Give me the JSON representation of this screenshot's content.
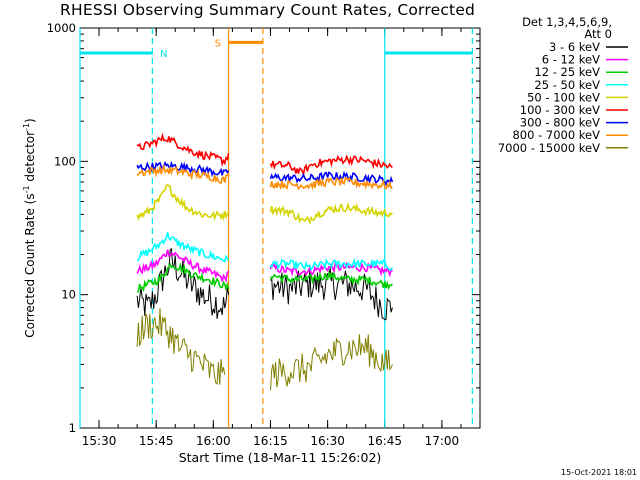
{
  "title": "RHESSI Observing Summary Count Rates, Corrected",
  "stamp": "15-Oct-2021 18:01",
  "chart_data": {
    "type": "line",
    "xlabel": "Start Time (18-Mar-11 15:26:02)",
    "ylabel_parts": [
      "Corrected Count Rate (s",
      "-1",
      " detector",
      "-1",
      ")"
    ],
    "yscale": "log",
    "ylim": [
      1,
      1000
    ],
    "xlim": [
      "15:25",
      "17:10"
    ],
    "x_ticks": [
      "15:30",
      "15:45",
      "16:00",
      "16:15",
      "16:30",
      "16:45",
      "17:00"
    ],
    "y_ticks": [
      "1",
      "10",
      "100",
      "1000"
    ],
    "legend_header": [
      "Det 1,3,4,5,6,9,",
      "Att 0"
    ],
    "legend_position": "right",
    "flags": [
      {
        "label": "N",
        "color": "#00e5ee",
        "start": "15:25",
        "end": "15:44",
        "level": 650
      },
      {
        "label": "S",
        "color": "#ff8c00",
        "start": "16:04",
        "end": "16:13",
        "level": 780
      },
      {
        "label": "N",
        "color": "#00e5ee",
        "start": "16:45",
        "end": "17:08",
        "level": 650
      }
    ],
    "boundaries": [
      {
        "time": "15:25",
        "color": "#00e5ee",
        "style": "solid"
      },
      {
        "time": "15:44",
        "color": "#00e5ee",
        "style": "dashed"
      },
      {
        "time": "16:04",
        "color": "#ff8c00",
        "style": "solid"
      },
      {
        "time": "16:13",
        "color": "#ff8c00",
        "style": "dashed"
      },
      {
        "time": "16:45",
        "color": "#00e5ee",
        "style": "solid"
      },
      {
        "time": "17:08",
        "color": "#00e5ee",
        "style": "dashed"
      }
    ],
    "gap": [
      "16:05",
      "16:15"
    ],
    "series": [
      {
        "name": "3 - 6 keV",
        "color": "#000000",
        "points": [
          [
            "15:40",
            9
          ],
          [
            "15:43",
            8
          ],
          [
            "15:45",
            10
          ],
          [
            "15:47",
            14
          ],
          [
            "15:49",
            18
          ],
          [
            "15:51",
            15
          ],
          [
            "15:54",
            12
          ],
          [
            "15:57",
            10
          ],
          [
            "16:00",
            9
          ],
          [
            "16:03",
            8
          ],
          [
            "16:04",
            10
          ],
          [
            "16:15",
            12
          ],
          [
            "16:20",
            11
          ],
          [
            "16:25",
            12
          ],
          [
            "16:30",
            12
          ],
          [
            "16:35",
            12
          ],
          [
            "16:40",
            11
          ],
          [
            "16:45",
            8
          ],
          [
            "16:47",
            8
          ]
        ]
      },
      {
        "name": "6 - 12 keV",
        "color": "#ff00ff",
        "points": [
          [
            "15:40",
            15
          ],
          [
            "15:43",
            16
          ],
          [
            "15:45",
            17
          ],
          [
            "15:48",
            21
          ],
          [
            "15:50",
            20
          ],
          [
            "15:54",
            17
          ],
          [
            "15:58",
            15
          ],
          [
            "16:01",
            14
          ],
          [
            "16:03",
            13
          ],
          [
            "16:04",
            15
          ],
          [
            "16:15",
            16
          ],
          [
            "16:20",
            15
          ],
          [
            "16:25",
            15
          ],
          [
            "16:30",
            16
          ],
          [
            "16:35",
            16
          ],
          [
            "16:40",
            16
          ],
          [
            "16:45",
            15
          ],
          [
            "16:47",
            15
          ]
        ]
      },
      {
        "name": "12 - 25 keV",
        "color": "#00cc00",
        "points": [
          [
            "15:40",
            11
          ],
          [
            "15:43",
            12
          ],
          [
            "15:46",
            13
          ],
          [
            "15:49",
            17
          ],
          [
            "15:51",
            16
          ],
          [
            "15:55",
            14
          ],
          [
            "15:59",
            13
          ],
          [
            "16:02",
            12
          ],
          [
            "16:04",
            11
          ],
          [
            "16:15",
            14
          ],
          [
            "16:20",
            13
          ],
          [
            "16:25",
            13
          ],
          [
            "16:30",
            14
          ],
          [
            "16:35",
            13
          ],
          [
            "16:40",
            13
          ],
          [
            "16:45",
            12
          ],
          [
            "16:47",
            12
          ]
        ]
      },
      {
        "name": "25 - 50 keV",
        "color": "#00ffff",
        "points": [
          [
            "15:40",
            19
          ],
          [
            "15:43",
            21
          ],
          [
            "15:46",
            24
          ],
          [
            "15:48",
            28
          ],
          [
            "15:50",
            25
          ],
          [
            "15:54",
            22
          ],
          [
            "15:58",
            20
          ],
          [
            "16:01",
            19
          ],
          [
            "16:04",
            18
          ],
          [
            "16:15",
            17
          ],
          [
            "16:20",
            17
          ],
          [
            "16:25",
            16
          ],
          [
            "16:30",
            17
          ],
          [
            "16:35",
            17
          ],
          [
            "16:40",
            17
          ],
          [
            "16:45",
            17
          ],
          [
            "16:47",
            16
          ]
        ]
      },
      {
        "name": "50 - 100 keV",
        "color": "#d4d400",
        "points": [
          [
            "15:40",
            38
          ],
          [
            "15:43",
            42
          ],
          [
            "15:46",
            52
          ],
          [
            "15:48",
            65
          ],
          [
            "15:50",
            55
          ],
          [
            "15:53",
            45
          ],
          [
            "15:57",
            40
          ],
          [
            "16:00",
            39
          ],
          [
            "16:03",
            40
          ],
          [
            "16:04",
            42
          ],
          [
            "16:15",
            44
          ],
          [
            "16:20",
            42
          ],
          [
            "16:24",
            35
          ],
          [
            "16:27",
            40
          ],
          [
            "16:31",
            44
          ],
          [
            "16:35",
            45
          ],
          [
            "16:39",
            43
          ],
          [
            "16:43",
            41
          ],
          [
            "16:47",
            41
          ]
        ]
      },
      {
        "name": "100 - 300 keV",
        "color": "#ff0000",
        "points": [
          [
            "15:40",
            125
          ],
          [
            "15:43",
            133
          ],
          [
            "15:46",
            145
          ],
          [
            "15:48",
            150
          ],
          [
            "15:50",
            138
          ],
          [
            "15:54",
            120
          ],
          [
            "15:58",
            110
          ],
          [
            "16:01",
            105
          ],
          [
            "16:03",
            100
          ],
          [
            "16:04",
            115
          ],
          [
            "16:15",
            95
          ],
          [
            "16:20",
            92
          ],
          [
            "16:23",
            82
          ],
          [
            "16:26",
            95
          ],
          [
            "16:30",
            100
          ],
          [
            "16:35",
            104
          ],
          [
            "16:39",
            102
          ],
          [
            "16:43",
            96
          ],
          [
            "16:47",
            90
          ]
        ]
      },
      {
        "name": "300 - 800 keV",
        "color": "#0000ff",
        "points": [
          [
            "15:40",
            90
          ],
          [
            "15:43",
            91
          ],
          [
            "15:46",
            92
          ],
          [
            "15:50",
            92
          ],
          [
            "15:55",
            88
          ],
          [
            "16:00",
            84
          ],
          [
            "16:03",
            80
          ],
          [
            "16:04",
            85
          ],
          [
            "16:15",
            76
          ],
          [
            "16:20",
            75
          ],
          [
            "16:25",
            74
          ],
          [
            "16:30",
            78
          ],
          [
            "16:35",
            77
          ],
          [
            "16:40",
            75
          ],
          [
            "16:45",
            72
          ],
          [
            "16:47",
            70
          ]
        ]
      },
      {
        "name": "800 - 7000 keV",
        "color": "#ff8c00",
        "points": [
          [
            "15:40",
            82
          ],
          [
            "15:43",
            84
          ],
          [
            "15:46",
            86
          ],
          [
            "15:50",
            85
          ],
          [
            "15:55",
            80
          ],
          [
            "16:00",
            76
          ],
          [
            "16:03",
            72
          ],
          [
            "16:04",
            78
          ],
          [
            "16:15",
            68
          ],
          [
            "16:20",
            67
          ],
          [
            "16:25",
            66
          ],
          [
            "16:30",
            70
          ],
          [
            "16:35",
            70
          ],
          [
            "16:40",
            68
          ],
          [
            "16:45",
            66
          ],
          [
            "16:47",
            64
          ]
        ]
      },
      {
        "name": "7000 - 15000 keV",
        "color": "#808000",
        "points": [
          [
            "15:40",
            5
          ],
          [
            "15:43",
            6
          ],
          [
            "15:46",
            6
          ],
          [
            "15:49",
            5
          ],
          [
            "15:51",
            4
          ],
          [
            "15:54",
            3.5
          ],
          [
            "15:57",
            3
          ],
          [
            "16:00",
            2.5
          ],
          [
            "16:03",
            2.5
          ],
          [
            "16:15",
            2.5
          ],
          [
            "16:20",
            2.7
          ],
          [
            "16:25",
            2.8
          ],
          [
            "16:30",
            3.5
          ],
          [
            "16:35",
            4
          ],
          [
            "16:40",
            4
          ],
          [
            "16:45",
            3
          ],
          [
            "16:47",
            3
          ]
        ]
      }
    ]
  }
}
